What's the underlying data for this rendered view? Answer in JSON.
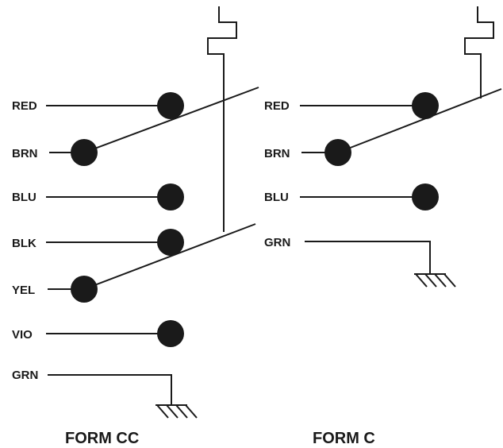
{
  "form_cc": {
    "label": "FORM CC",
    "wires": [
      "RED",
      "BRN",
      "BLU",
      "BLK",
      "YEL",
      "VIO",
      "GRN"
    ]
  },
  "form_c": {
    "label": "FORM C",
    "wires": [
      "RED",
      "BRN",
      "BLU",
      "GRN"
    ]
  }
}
